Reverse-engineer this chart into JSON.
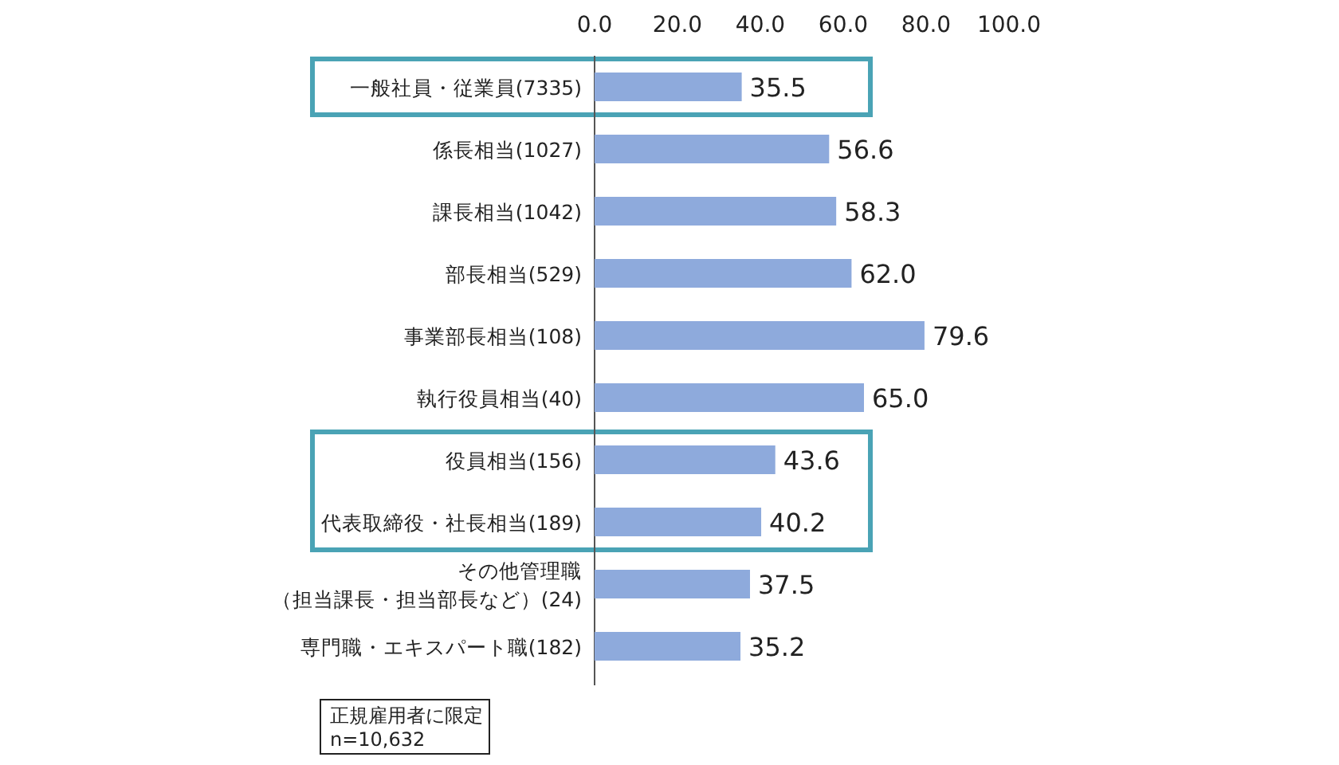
{
  "chart_data": {
    "type": "bar",
    "orientation": "horizontal",
    "categories": [
      "一般社員・従業員(7335)",
      "係長相当(1027)",
      "課長相当(1042)",
      "部長相当(529)",
      "事業部長相当(108)",
      "執行役員相当(40)",
      "役員相当(156)",
      "代表取締役・社長相当(189)",
      "その他管理職（担当課長・担当部長など）(24)",
      "専門職・エキスパート職(182)"
    ],
    "values": [
      35.5,
      56.6,
      58.3,
      62.0,
      79.6,
      65.0,
      43.6,
      40.2,
      37.5,
      35.2
    ],
    "value_labels": [
      "35.5",
      "56.6",
      "58.3",
      "62.0",
      "79.6",
      "65.0",
      "43.6",
      "40.2",
      "37.5",
      "35.2"
    ],
    "color": "#8eaadc",
    "xlim": [
      0,
      100
    ],
    "xticks": [
      {
        "value": 0,
        "label": "0.0"
      },
      {
        "value": 20,
        "label": "20.0"
      },
      {
        "value": 40,
        "label": "40.0"
      },
      {
        "value": 60,
        "label": "60.0"
      },
      {
        "value": 80,
        "label": "80.0"
      },
      {
        "value": 100,
        "label": "100.0"
      }
    ],
    "annotations": [
      "正規雇用者に限定\nn=10,632"
    ],
    "grid": false
  }
}
